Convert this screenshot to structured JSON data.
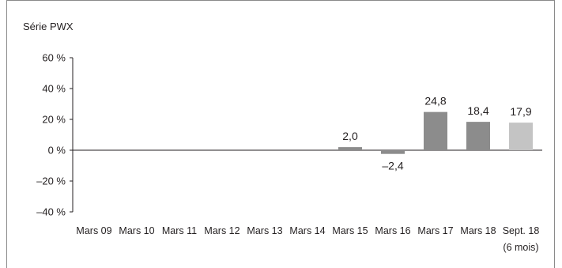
{
  "chart_data": {
    "type": "bar",
    "title": "Série PWX",
    "xlabel": "",
    "ylabel": "",
    "ylim": [
      -40,
      60
    ],
    "yticks": [
      60,
      40,
      20,
      0,
      -20,
      -40
    ],
    "ytick_labels": [
      "60 %",
      "40 %",
      "20 %",
      "0 %",
      "–20 %",
      "–40 %"
    ],
    "categories": [
      {
        "label": "Mars 09",
        "sub": ""
      },
      {
        "label": "Mars 10",
        "sub": ""
      },
      {
        "label": "Mars 11",
        "sub": ""
      },
      {
        "label": "Mars 12",
        "sub": ""
      },
      {
        "label": "Mars 13",
        "sub": ""
      },
      {
        "label": "Mars 14",
        "sub": ""
      },
      {
        "label": "Mars 15",
        "sub": ""
      },
      {
        "label": "Mars 16",
        "sub": ""
      },
      {
        "label": "Mars 17",
        "sub": ""
      },
      {
        "label": "Mars 18",
        "sub": ""
      },
      {
        "label": "Sept. 18",
        "sub": "(6 mois)"
      }
    ],
    "values": [
      null,
      null,
      null,
      null,
      null,
      null,
      2.0,
      -2.4,
      24.8,
      18.4,
      17.9
    ],
    "value_labels": [
      "",
      "",
      "",
      "",
      "",
      "",
      "2,0",
      "–2,4",
      "24,8",
      "18,4",
      "17,9"
    ],
    "bar_colors": [
      "#8c8c8c",
      "#8c8c8c",
      "#8c8c8c",
      "#8c8c8c",
      "#8c8c8c",
      "#8c8c8c",
      "#8c8c8c",
      "#8c8c8c",
      "#8c8c8c",
      "#8c8c8c",
      "#c4c4c4"
    ],
    "grid": false,
    "legend": "none"
  }
}
